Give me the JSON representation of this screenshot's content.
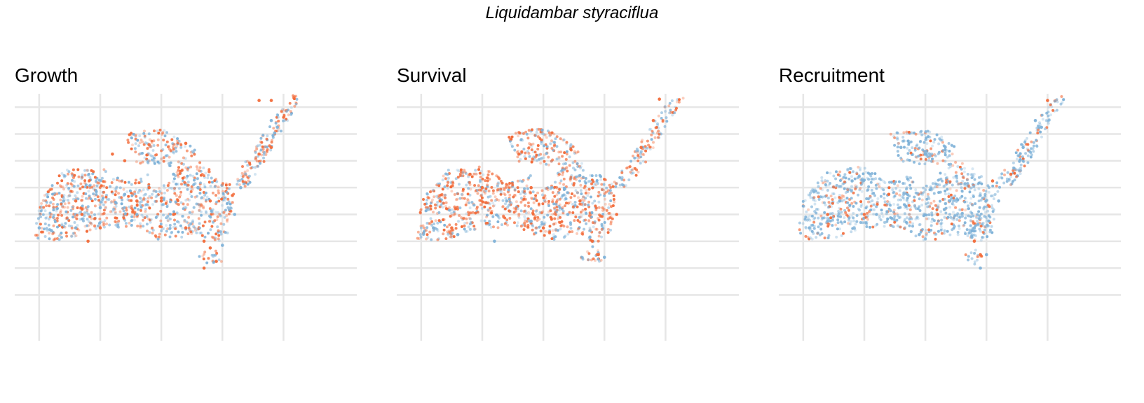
{
  "title": "Liquidambar styraciflua",
  "colors": {
    "high": "#f26b3a",
    "low": "#7fb2d8",
    "grid": "#e6e6e6"
  },
  "chart_data": [
    {
      "type": "scatter",
      "title": "Growth",
      "xlabel": "",
      "ylabel": "",
      "grid": true,
      "legend": "none",
      "xlim": [
        -102,
        -74
      ],
      "ylim": [
        23,
        41
      ],
      "xticks": [
        -100,
        -95,
        -90,
        -85,
        -80
      ],
      "yticks": [
        26,
        28,
        30,
        32,
        34,
        36,
        38,
        40
      ],
      "orange_share": 0.5,
      "series": [
        {
          "color": "#f26b3a",
          "points": [
            [
              -94,
              36.5
            ],
            [
              -93,
              36
            ],
            [
              -91,
              37.2
            ],
            [
              -88,
              37.3
            ],
            [
              -82,
              40.5
            ],
            [
              -81,
              40.5
            ],
            [
              -90,
              33
            ],
            [
              -86.5,
              30
            ],
            [
              -86,
              29.5
            ],
            [
              -85.5,
              28.5
            ],
            [
              -86.5,
              28
            ],
            [
              -88,
              31
            ],
            [
              -89,
              32
            ],
            [
              -86,
              33
            ],
            [
              -82,
              36.5
            ],
            [
              -81,
              37
            ],
            [
              -96,
              30
            ],
            [
              -95,
              31
            ],
            [
              -96.5,
              32
            ],
            [
              -97,
              33
            ],
            [
              -92,
              33
            ],
            [
              -91,
              34
            ]
          ]
        },
        {
          "color": "#7fb2d8",
          "points": [
            [
              -100,
              31
            ],
            [
              -99,
              30.8
            ],
            [
              -97,
              31
            ],
            [
              -95,
              32.5
            ],
            [
              -93,
              33.5
            ],
            [
              -89,
              35
            ],
            [
              -87,
              34
            ],
            [
              -84,
              32
            ],
            [
              -81,
              39
            ],
            [
              -80.5,
              38.5
            ],
            [
              -83.5,
              34
            ],
            [
              -85,
              29.7
            ],
            [
              -98,
              33
            ],
            [
              -92,
              32
            ]
          ]
        }
      ]
    },
    {
      "type": "scatter",
      "title": "Survival",
      "xlabel": "",
      "ylabel": "",
      "grid": true,
      "legend": "none",
      "xlim": [
        -102,
        -74
      ],
      "ylim": [
        23,
        41
      ],
      "xticks": [
        -100,
        -95,
        -90,
        -85,
        -80
      ],
      "yticks": [
        26,
        28,
        30,
        32,
        34,
        36,
        38,
        40
      ],
      "orange_share": 0.58,
      "series": [
        {
          "color": "#f26b3a",
          "points": [
            [
              -96,
              35
            ],
            [
              -95,
              34
            ],
            [
              -91,
              34
            ],
            [
              -87,
              33
            ],
            [
              -84,
              32
            ],
            [
              -82,
              37
            ],
            [
              -81,
              39
            ],
            [
              -80.5,
              40.6
            ],
            [
              -86,
              30
            ],
            [
              -85.5,
              29
            ],
            [
              -90,
              31
            ],
            [
              -97.5,
              31
            ],
            [
              -92,
              36.5
            ]
          ]
        },
        {
          "color": "#7fb2d8",
          "points": [
            [
              -99,
              31
            ],
            [
              -97,
              30.5
            ],
            [
              -94,
              30
            ],
            [
              -91,
              31.5
            ],
            [
              -88,
              32
            ],
            [
              -85,
              28.8
            ],
            [
              -86.2,
              30.3
            ],
            [
              -93,
              33
            ]
          ]
        }
      ]
    },
    {
      "type": "scatter",
      "title": "Recruitment",
      "xlabel": "",
      "ylabel": "",
      "grid": true,
      "legend": "none",
      "xlim": [
        -102,
        -74
      ],
      "ylim": [
        23,
        41
      ],
      "xticks": [
        -100,
        -95,
        -90,
        -85,
        -80
      ],
      "yticks": [
        26,
        28,
        30,
        32,
        34,
        36,
        38,
        40
      ],
      "orange_share": 0.2,
      "series": [
        {
          "color": "#f26b3a",
          "points": [
            [
              -98,
              32
            ],
            [
              -95,
              32
            ],
            [
              -93,
              33.5
            ],
            [
              -89,
              32
            ],
            [
              -86,
              30
            ],
            [
              -83,
              35
            ],
            [
              -80,
              40.5
            ],
            [
              -84.5,
              34.5
            ],
            [
              -85.5,
              29
            ]
          ]
        },
        {
          "color": "#7fb2d8",
          "points": [
            [
              -99.5,
              31
            ],
            [
              -98,
              31.5
            ],
            [
              -97,
              33
            ],
            [
              -96,
              34.5
            ],
            [
              -94,
              32
            ],
            [
              -92,
              37
            ],
            [
              -90,
              36.5
            ],
            [
              -88,
              33
            ],
            [
              -86,
              31
            ],
            [
              -84,
              33
            ],
            [
              -82,
              37
            ],
            [
              -81,
              39
            ],
            [
              -80.5,
              38.5
            ],
            [
              -85,
              29
            ],
            [
              -85.5,
              28
            ],
            [
              -90.5,
              30.5
            ],
            [
              -86.2,
              30.3
            ]
          ]
        }
      ]
    }
  ]
}
